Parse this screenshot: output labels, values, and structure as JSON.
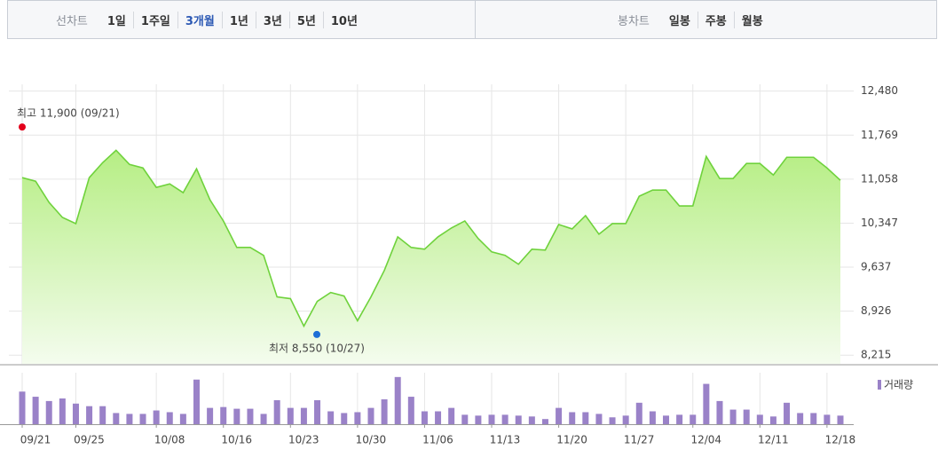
{
  "tabs": {
    "line_label": "선차트",
    "line_options": [
      {
        "label": "1일",
        "selected": false
      },
      {
        "label": "1주일",
        "selected": false
      },
      {
        "label": "3개월",
        "selected": true
      },
      {
        "label": "1년",
        "selected": false
      },
      {
        "label": "3년",
        "selected": false
      },
      {
        "label": "5년",
        "selected": false
      },
      {
        "label": "10년",
        "selected": false
      }
    ],
    "candle_label": "봉차트",
    "candle_options": [
      {
        "label": "일봉",
        "selected": false
      },
      {
        "label": "주봉",
        "selected": false
      },
      {
        "label": "월봉",
        "selected": false
      }
    ]
  },
  "chart_data": {
    "type": "area",
    "categories": [
      "09/21",
      null,
      null,
      null,
      "09/25",
      null,
      null,
      null,
      null,
      null,
      "10/08",
      null,
      null,
      null,
      null,
      "10/16",
      null,
      null,
      null,
      null,
      "10/23",
      null,
      null,
      null,
      null,
      "10/30",
      null,
      null,
      null,
      null,
      "11/06",
      null,
      null,
      null,
      null,
      "11/13",
      null,
      null,
      null,
      null,
      "11/20",
      null,
      null,
      null,
      null,
      "11/27",
      null,
      null,
      null,
      null,
      "12/04",
      null,
      null,
      null,
      null,
      "12/11",
      null,
      null,
      null,
      null,
      "12/18",
      null
    ],
    "series": [
      {
        "color": "#6fd23c",
        "values": [
          11082,
          11025,
          10683,
          10440,
          10340,
          11082,
          11325,
          11524,
          11296,
          11239,
          10925,
          10982,
          10840,
          11225,
          10725,
          10383,
          9955,
          9955,
          9827,
          9156,
          9128,
          8685,
          9085,
          9227,
          9170,
          8771,
          9156,
          9584,
          10126,
          9955,
          9927,
          10126,
          10269,
          10383,
          10098,
          9884,
          9827,
          9684,
          9927,
          9913,
          10326,
          10255,
          10469,
          10169,
          10340,
          10340,
          10782,
          10882,
          10882,
          10625,
          10625,
          11425,
          11068,
          11068,
          11311,
          11311,
          11125,
          11411,
          11411,
          11411,
          11239,
          11039
        ]
      }
    ],
    "ylim": [
      8075,
      12590
    ],
    "yticks": [
      {
        "value": 8215,
        "label": "8,215"
      },
      {
        "value": 8926,
        "label": "8,926"
      },
      {
        "value": 9637,
        "label": "9,637"
      },
      {
        "value": 10347,
        "label": "10,347"
      },
      {
        "value": 11058,
        "label": "11,058"
      },
      {
        "value": 11769,
        "label": "11,769"
      },
      {
        "value": 12480,
        "label": "12,480"
      }
    ],
    "grid": true,
    "annotations": [
      {
        "label": "최고 11,900 (09/21)",
        "value": 11900,
        "color": "#e3001b"
      },
      {
        "label": "최저 8,550 (10/27)",
        "value": 8550,
        "color": "#1d6fd6"
      }
    ],
    "volume": {
      "name": "거래량",
      "color": "#9a82c8",
      "ylim": [
        0,
        60
      ],
      "values": [
        38,
        32,
        27,
        30,
        24,
        21,
        21,
        13,
        12,
        12,
        16,
        14,
        12,
        52,
        19,
        20,
        18,
        18,
        12,
        28,
        19,
        19,
        28,
        15,
        13,
        14,
        19,
        29,
        55,
        32,
        15,
        15,
        19,
        11,
        10,
        11,
        11,
        10,
        9,
        6,
        19,
        14,
        14,
        12,
        8,
        10,
        25,
        15,
        10,
        11,
        11,
        47,
        27,
        17,
        17,
        11,
        9,
        25,
        13,
        13,
        11,
        10
      ]
    }
  }
}
